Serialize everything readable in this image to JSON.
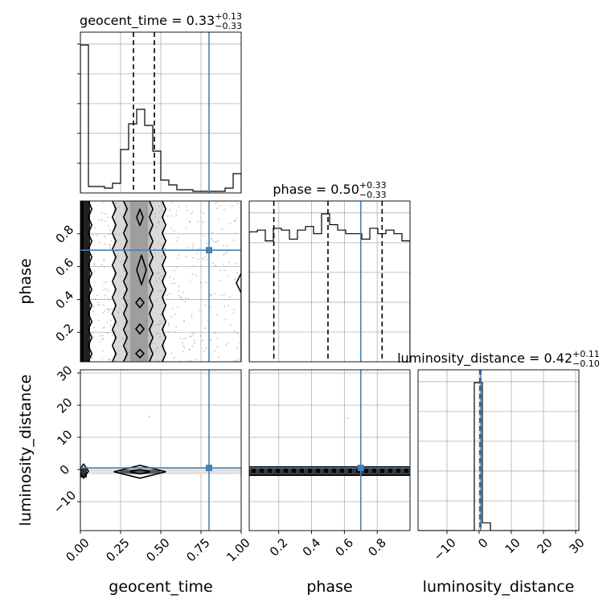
{
  "chart_data": {
    "type": "corner",
    "parameters": [
      "geocent_time",
      "phase",
      "luminosity_distance"
    ],
    "truths": {
      "geocent_time": 0.8,
      "phase": 0.7,
      "luminosity_distance": 0.5
    },
    "truth_color": "#4682b4",
    "titles": [
      {
        "param": "geocent_time",
        "label": "geocent_time = 0.33",
        "plus": "+0.13",
        "minus": "−0.33"
      },
      {
        "param": "phase",
        "label": "phase = 0.50",
        "plus": "+0.33",
        "minus": "−0.33"
      },
      {
        "param": "luminosity_distance",
        "label": "luminosity_distance = 0.42",
        "plus": "+0.11",
        "minus": "−0.10"
      }
    ],
    "axes": {
      "geocent_time": {
        "range": [
          0,
          1
        ],
        "ticks": [
          0,
          0.25,
          0.5,
          0.75,
          1.0
        ],
        "tick_labels": [
          "0.00",
          "0.25",
          "0.50",
          "0.75",
          "1.00"
        ],
        "label": "geocent_time"
      },
      "phase": {
        "range": [
          0.02,
          1.0
        ],
        "ticks": [
          0.2,
          0.4,
          0.6,
          0.8
        ],
        "tick_labels": [
          "0.2",
          "0.4",
          "0.6",
          "0.8"
        ],
        "label": "phase"
      },
      "luminosity_distance": {
        "range": [
          -19,
          31
        ],
        "ticks": [
          -10,
          0,
          10,
          20,
          30
        ],
        "tick_labels": [
          "−10",
          "0",
          "10",
          "20",
          "30"
        ],
        "label": "luminosity_distance"
      }
    },
    "histograms": {
      "geocent_time": {
        "bin_edges": [
          0,
          0.05,
          0.1,
          0.15,
          0.2,
          0.25,
          0.3,
          0.35,
          0.4,
          0.45,
          0.5,
          0.55,
          0.6,
          0.65,
          0.7,
          0.75,
          0.8,
          0.85,
          0.9,
          0.95,
          1.0
        ],
        "counts": [
          0.92,
          0.04,
          0.04,
          0.03,
          0.06,
          0.27,
          0.43,
          0.52,
          0.42,
          0.26,
          0.08,
          0.05,
          0.02,
          0.02,
          0.01,
          0.01,
          0.01,
          0.01,
          0.03,
          0.12
        ],
        "quantiles": [
          0.33,
          0.46
        ]
      },
      "phase": {
        "bin_edges": [
          0.02,
          0.069,
          0.118,
          0.167,
          0.216,
          0.265,
          0.314,
          0.363,
          0.412,
          0.461,
          0.51,
          0.559,
          0.608,
          0.657,
          0.706,
          0.755,
          0.804,
          0.853,
          0.902,
          0.951,
          1.0
        ],
        "counts": [
          0.72,
          0.73,
          0.67,
          0.74,
          0.73,
          0.68,
          0.73,
          0.75,
          0.71,
          0.82,
          0.76,
          0.73,
          0.71,
          0.71,
          0.68,
          0.74,
          0.71,
          0.73,
          0.71,
          0.67
        ],
        "quantiles": [
          0.17,
          0.5,
          0.83
        ]
      },
      "luminosity_distance": {
        "bin_edges": [
          -19,
          -16.5,
          -14,
          -11.5,
          -9,
          -6.5,
          -4,
          -1.5,
          1,
          3.5,
          6,
          8.5,
          11,
          13.5,
          16,
          18.5,
          21,
          23.5,
          26,
          28.5,
          31
        ],
        "counts": [
          0,
          0,
          0,
          0,
          0,
          0,
          0,
          0.95,
          0.05,
          0,
          0,
          0,
          0,
          0,
          0,
          0,
          0,
          0,
          0,
          0
        ],
        "quantiles": [
          0.32,
          0.42,
          0.53
        ]
      }
    },
    "contours": [
      {
        "x": "geocent_time",
        "y": "phase",
        "levels": [
          {
            "type": "band",
            "x_edges": [
              0.0,
              0.06
            ]
          },
          {
            "type": "band",
            "x_edges": [
              0.21,
              0.52
            ]
          },
          {
            "type": "band",
            "x_edges": [
              0.28,
              0.44
            ]
          },
          {
            "type": "blob",
            "cx": 0.37,
            "cy": 0.9,
            "rx": 0.02,
            "ry": 0.05
          },
          {
            "type": "blob",
            "cx": 0.38,
            "cy": 0.58,
            "rx": 0.03,
            "ry": 0.09
          },
          {
            "type": "blob",
            "cx": 0.37,
            "cy": 0.38,
            "rx": 0.025,
            "ry": 0.03
          },
          {
            "type": "blob",
            "cx": 0.37,
            "cy": 0.22,
            "rx": 0.025,
            "ry": 0.03
          },
          {
            "type": "blob",
            "cx": 0.37,
            "cy": 0.07,
            "rx": 0.025,
            "ry": 0.025
          },
          {
            "type": "blob",
            "cx": 1.0,
            "cy": 0.5,
            "rx": 0.03,
            "ry": 0.06
          }
        ]
      },
      {
        "x": "geocent_time",
        "y": "luminosity_distance",
        "levels": [
          {
            "type": "blob",
            "cx": 0.37,
            "cy": -0.7,
            "rx": 0.16,
            "ry": 2.0
          },
          {
            "type": "blob",
            "cx": 0.37,
            "cy": -0.7,
            "rx": 0.06,
            "ry": 0.7
          },
          {
            "type": "blob",
            "cx": 0.02,
            "cy": -0.5,
            "rx": 0.03,
            "ry": 2.2
          }
        ]
      },
      {
        "x": "phase",
        "y": "luminosity_distance",
        "levels": [
          {
            "type": "hband",
            "y_edges": [
              -1.8,
              0.8
            ]
          }
        ]
      }
    ]
  }
}
